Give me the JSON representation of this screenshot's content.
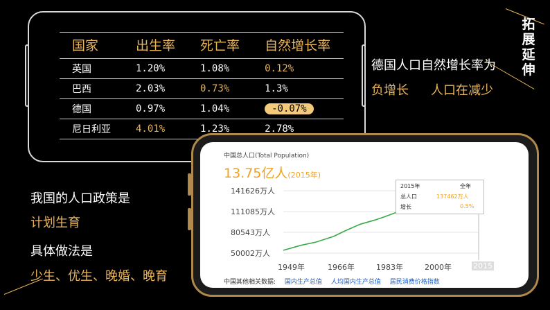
{
  "table": {
    "headers": [
      "国家",
      "出生率",
      "死亡率",
      "自然增长率"
    ],
    "rows": [
      {
        "country": "英国",
        "birth": "1.20%",
        "death": "1.08%",
        "growth": "0.12%"
      },
      {
        "country": "巴西",
        "birth": "2.03%",
        "death": "0.73%",
        "growth": "1.3%"
      },
      {
        "country": "德国",
        "birth": "0.97%",
        "death": "1.04%",
        "growth": "-0.07%"
      },
      {
        "country": "尼日利亚",
        "birth": "4.01%",
        "death": "1.23%",
        "growth": "2.78%"
      }
    ]
  },
  "side_title": "拓展延伸",
  "notes": {
    "germany_line1": "德国人口自然增长率为",
    "germany_line2a": "负增长",
    "germany_line2b": "人口在减少",
    "policy_title": "我国的人口政策是",
    "policy_value": "计划生育",
    "method_title": "具体做法是",
    "method_value": "少生、优生、晚婚、晚育"
  },
  "screen": {
    "title": "中国总人口(Total Population)",
    "big_value": "13.75亿人",
    "big_year": "(2015年)",
    "y_ticks": [
      "141626万人",
      "111085万人",
      "80543万人",
      "50002万人"
    ],
    "x_ticks": [
      "1949年",
      "1966年",
      "1983年",
      "2000年",
      "2015"
    ],
    "tooltip": {
      "year": "2015年",
      "period": "全年",
      "label_total": "总人口",
      "value_total": "137462万人",
      "label_growth": "增长",
      "value_growth": "0.5%"
    },
    "links_label": "中国其他相关数据:",
    "links": [
      "国内生产总值",
      "人均国内生产总值",
      "居民消费价格指数"
    ]
  },
  "chart_data": {
    "type": "line",
    "title": "中国总人口(Total Population)",
    "xlabel": "",
    "ylabel": "",
    "x": [
      1949,
      1955,
      1960,
      1966,
      1970,
      1975,
      1980,
      1983,
      1990,
      1995,
      2000,
      2005,
      2010,
      2015
    ],
    "values": [
      54167,
      61465,
      66207,
      74542,
      82992,
      92420,
      98705,
      103008,
      114333,
      121121,
      126743,
      130756,
      134091,
      137462
    ],
    "ylim": [
      50002,
      141626
    ]
  },
  "colors": {
    "accent": "#e8b45a",
    "line": "#3aa84a",
    "bignum": "#f2a11f"
  }
}
